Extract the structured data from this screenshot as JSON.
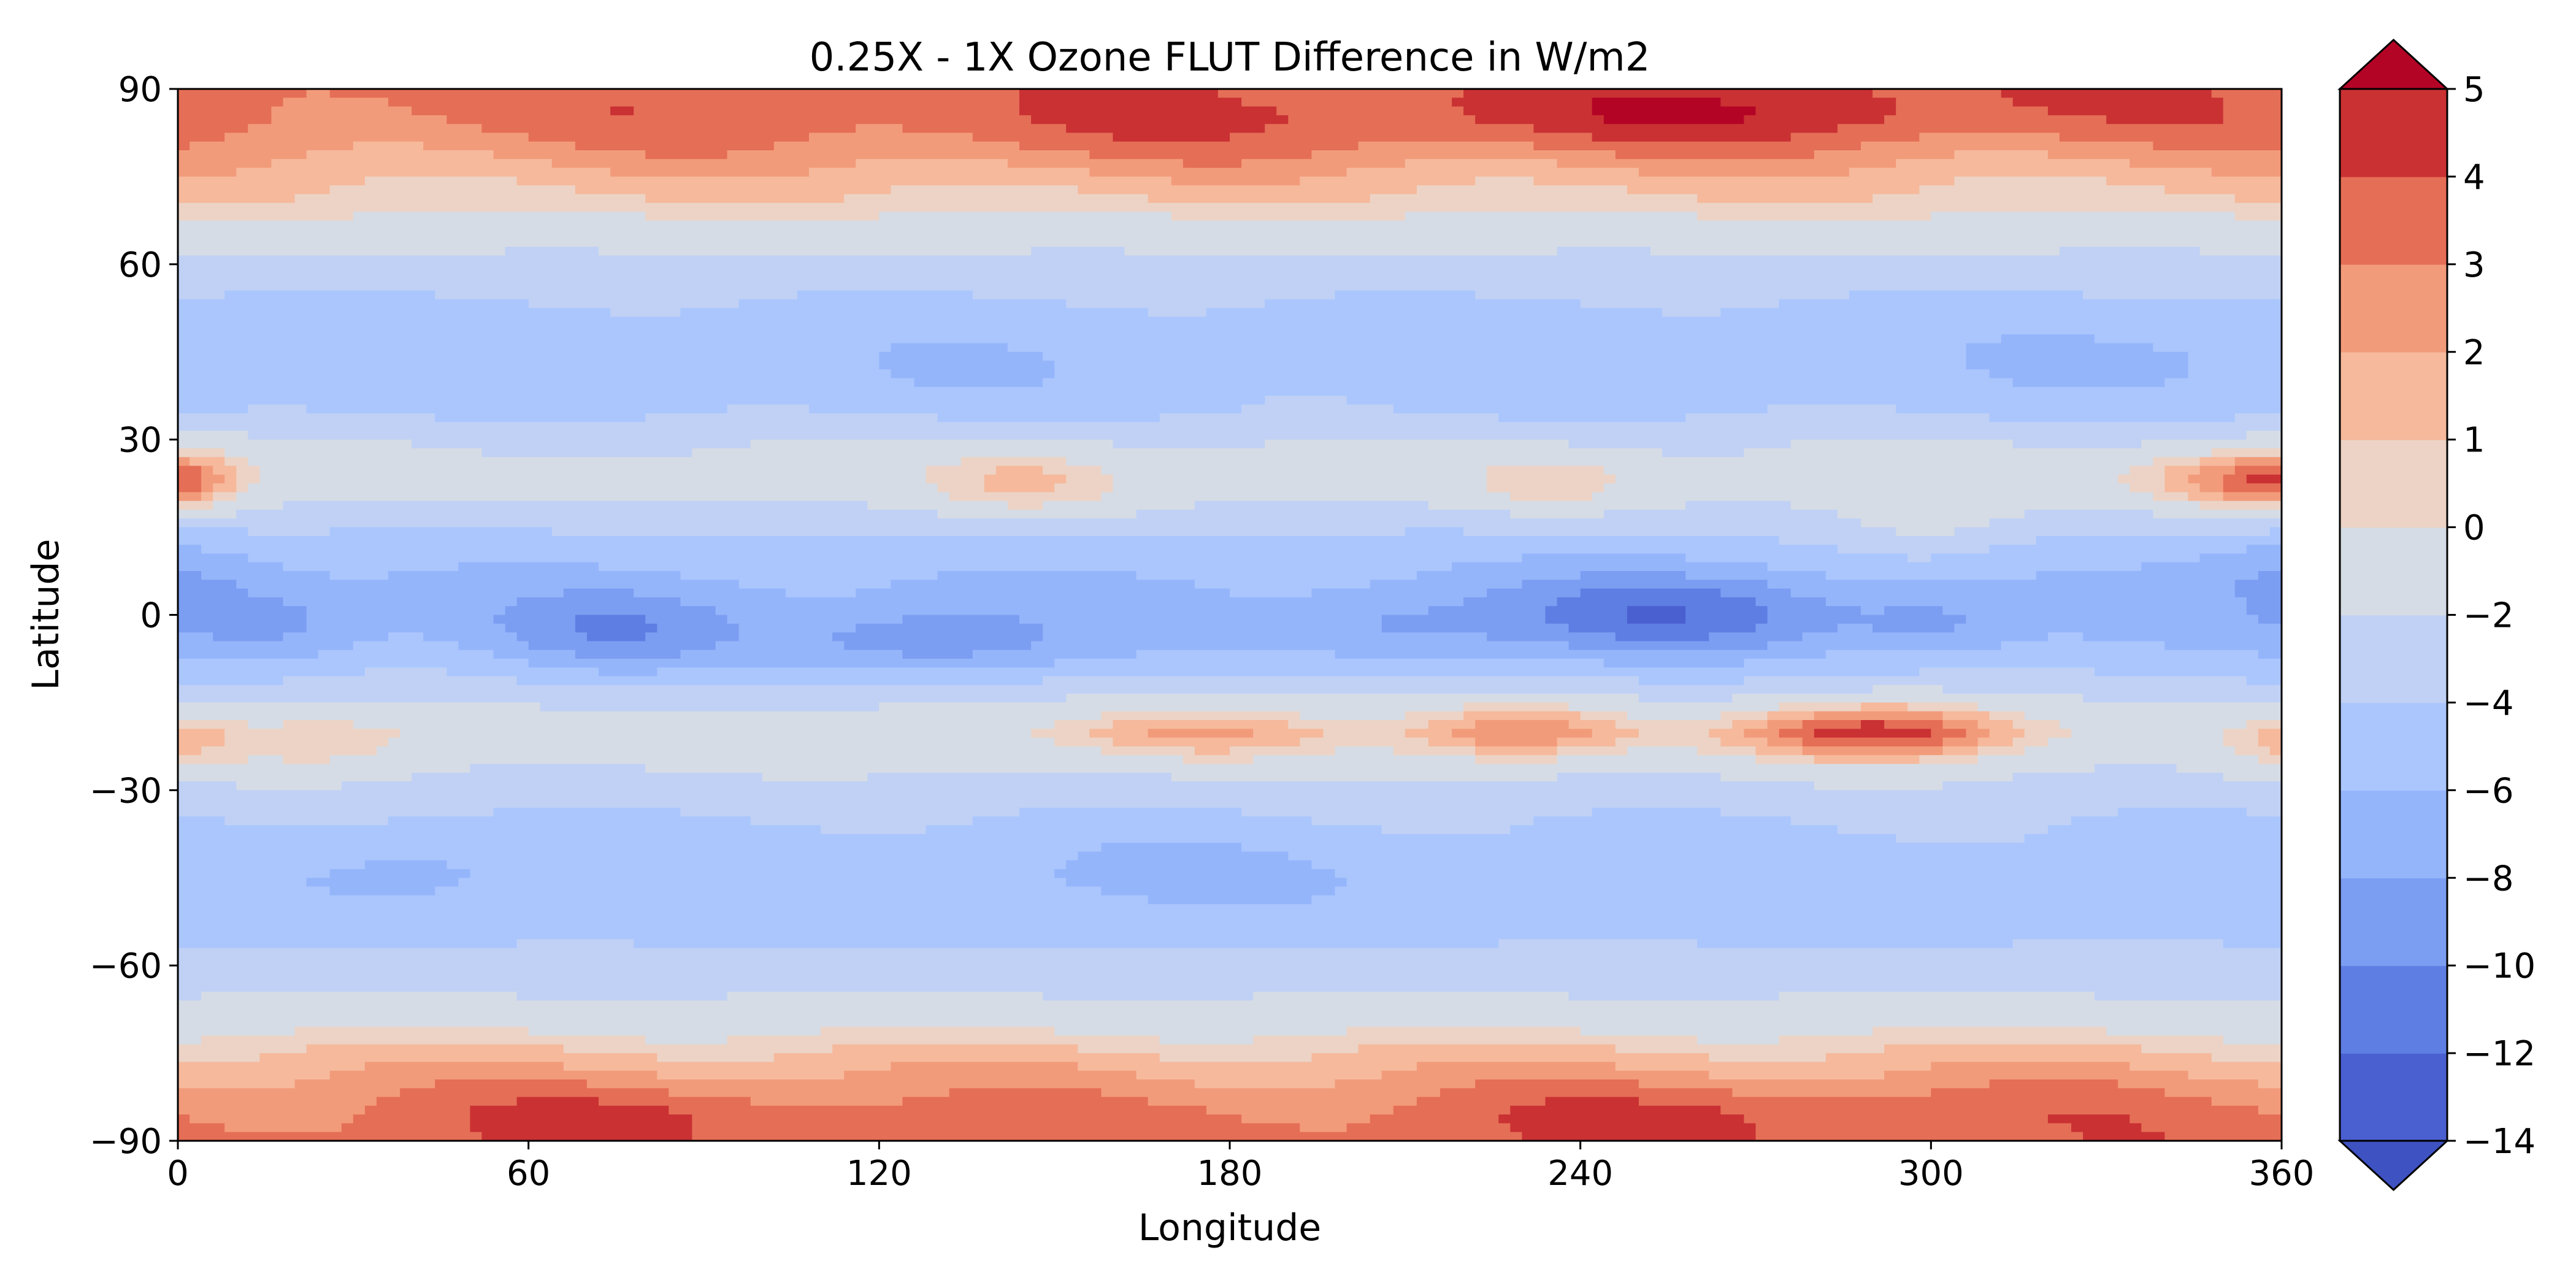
{
  "chart_data": {
    "type": "heatmap",
    "title": "0.25X - 1X Ozone FLUT Difference in W/m2",
    "xlabel": "Longitude",
    "ylabel": "Latitude",
    "xlim": [
      0,
      360
    ],
    "ylim": [
      -90,
      90
    ],
    "xticks": [
      0,
      60,
      120,
      180,
      240,
      300,
      360
    ],
    "yticks": [
      -90,
      -60,
      -30,
      0,
      30,
      60,
      90
    ],
    "ytick_labels": [
      "−90",
      "−60",
      "−30",
      "0",
      "30",
      "60",
      "90"
    ],
    "grid": false,
    "colormap": "coolwarm",
    "colorbar": {
      "orientation": "vertical",
      "placement": "right",
      "extend": "both",
      "levels": [
        -14,
        -12,
        -10,
        -8,
        -6,
        -4,
        -2,
        0,
        1,
        2,
        3,
        4,
        5
      ],
      "tick_labels": [
        "−14",
        "−12",
        "−10",
        "−8",
        "−6",
        "−4",
        "−2",
        "0",
        "1",
        "2",
        "3",
        "4",
        "5"
      ],
      "colors": [
        "#4a5fd0",
        "#5e7ee3",
        "#7b9ef2",
        "#95b5fb",
        "#aac6fd",
        "#c0d1f5",
        "#d6dce5",
        "#ecd3c5",
        "#f6b99c",
        "#f29b7a",
        "#e56e56",
        "#ca3133"
      ],
      "under_color": "#3e52c2",
      "over_color": "#b40426"
    },
    "lat_profile": {
      "lat": [
        90,
        85,
        80,
        75,
        70,
        65,
        60,
        55,
        50,
        45,
        40,
        35,
        30,
        25,
        20,
        15,
        10,
        5,
        0,
        -5,
        -10,
        -15,
        -20,
        -25,
        -30,
        -35,
        -40,
        -45,
        -50,
        -55,
        -60,
        -65,
        -70,
        -75,
        -80,
        -85,
        -90
      ],
      "value": [
        3.4,
        3.2,
        2.4,
        1.4,
        0.5,
        -1.2,
        -2.5,
        -3.8,
        -4.6,
        -5.0,
        -4.9,
        -4.3,
        -2.3,
        -1.4,
        -1.9,
        -3.7,
        -5.2,
        -6.1,
        -6.3,
        -5.5,
        -4.0,
        -2.2,
        -0.8,
        -1.6,
        -2.8,
        -3.9,
        -4.7,
        -5.1,
        -4.9,
        -4.3,
        -3.3,
        -2.0,
        -0.5,
        1.2,
        2.3,
        3.1,
        3.5
      ]
    },
    "anomalies": [
      {
        "lon": 290,
        "lat": -20,
        "amp": 5.5,
        "slon": 18,
        "slat": 4
      },
      {
        "lon": 230,
        "lat": -20,
        "amp": 3.8,
        "slon": 14,
        "slat": 4
      },
      {
        "lon": 175,
        "lat": -20,
        "amp": 3.2,
        "slon": 18,
        "slat": 4
      },
      {
        "lon": 25,
        "lat": -22,
        "amp": 1.8,
        "slon": 12,
        "slat": 4
      },
      {
        "lon": 360,
        "lat": -22,
        "amp": 2.2,
        "slon": 8,
        "slat": 4
      },
      {
        "lon": 145,
        "lat": 22,
        "amp": 3.0,
        "slon": 14,
        "slat": 5
      },
      {
        "lon": 235,
        "lat": 22,
        "amp": 2.5,
        "slon": 12,
        "slat": 4
      },
      {
        "lon": 350,
        "lat": 23,
        "amp": 3.5,
        "slon": 14,
        "slat": 4
      },
      {
        "lon": 0,
        "lat": 23,
        "amp": 3.0,
        "slon": 8,
        "slat": 4
      },
      {
        "lon": 300,
        "lat": 16,
        "amp": 2.3,
        "slon": 12,
        "slat": 6
      },
      {
        "lon": 255,
        "lat": 0,
        "amp": -5.5,
        "slon": 20,
        "slat": 5
      },
      {
        "lon": 128,
        "lat": -5,
        "amp": -4.0,
        "slon": 18,
        "slat": 4
      },
      {
        "lon": 75,
        "lat": -3,
        "amp": -4.0,
        "slon": 15,
        "slat": 5
      },
      {
        "lon": 15,
        "lat": -2,
        "amp": -3.0,
        "slon": 12,
        "slat": 5
      },
      {
        "lon": 208,
        "lat": -3,
        "amp": -2.5,
        "slon": 14,
        "slat": 4
      },
      {
        "lon": 300,
        "lat": -2,
        "amp": -2.5,
        "slon": 10,
        "slat": 4
      },
      {
        "lon": 360,
        "lat": 7,
        "amp": -2.5,
        "slon": 10,
        "slat": 5
      },
      {
        "lon": 270,
        "lat": 86,
        "amp": 1.4,
        "slon": 45,
        "slat": 5
      },
      {
        "lon": 160,
        "lat": 82,
        "amp": 0.8,
        "slon": 60,
        "slat": 6
      },
      {
        "lon": 80,
        "lat": -85,
        "amp": 1.0,
        "slon": 25,
        "slat": 4
      },
      {
        "lon": 270,
        "lat": -85,
        "amp": 1.0,
        "slon": 40,
        "slat": 4
      },
      {
        "lon": 40,
        "lat": -44,
        "amp": -1.8,
        "slon": 15,
        "slat": 6
      },
      {
        "lon": 165,
        "lat": -44,
        "amp": -1.3,
        "slon": 35,
        "slat": 6
      },
      {
        "lon": 340,
        "lat": 44,
        "amp": -1.2,
        "slon": 30,
        "slat": 6
      },
      {
        "lon": 130,
        "lat": 42,
        "amp": -1.0,
        "slon": 20,
        "slat": 5
      }
    ]
  }
}
